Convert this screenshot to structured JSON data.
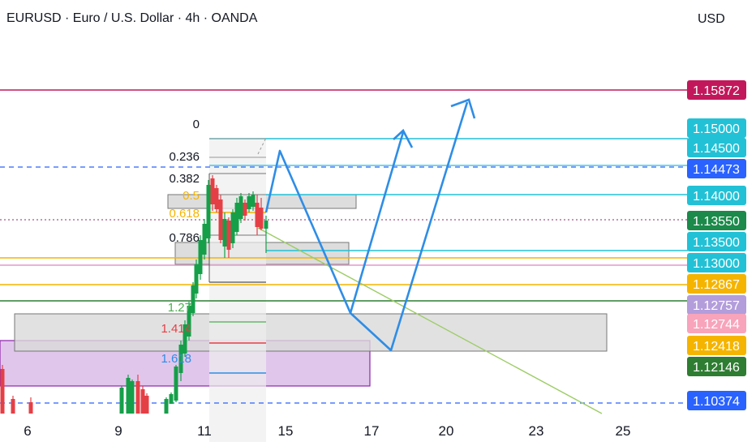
{
  "header": {
    "title": "EURUSD · Euro / U.S. Dollar · 4h · OANDA",
    "currency": "USD"
  },
  "colors": {
    "bull": "#26a69a",
    "bull_candle": "#159f49",
    "bear": "#e53f46",
    "arrow": "#2e8de6",
    "cyan": "#22c1d6",
    "crimson": "#c2185b",
    "amber": "#f5b400",
    "green_line": "#2e7d32",
    "pink_line": "#e39ac9",
    "zone_gray": "#d9d9d9",
    "zone_purple": "#e1c6ec"
  },
  "chart_data": {
    "type": "candlestick",
    "title": "EURUSD · Euro / U.S. Dollar · 4h · OANDA",
    "currency": "USD",
    "x_ticks": [
      "6",
      "9",
      "11",
      "15",
      "17",
      "20",
      "23",
      "25"
    ],
    "price_labels": [
      {
        "value": "1.15872",
        "bg": "#c2185b",
        "color": "#ffffff"
      },
      {
        "value": "1.15000",
        "bg": "#22c1d6",
        "color": "#131722"
      },
      {
        "value": "1.14500",
        "bg": "#22c1d6",
        "color": "#131722"
      },
      {
        "value": "1.14473",
        "bg": "#2962ff",
        "color": "#ffffff"
      },
      {
        "value": "1.14000",
        "bg": "#22c1d6",
        "color": "#131722"
      },
      {
        "value": "1.13550",
        "bg": "#1b8a4a",
        "color": "#ffffff"
      },
      {
        "value": "1.13500",
        "bg": "#22c1d6",
        "color": "#131722"
      },
      {
        "value": "1.13000",
        "bg": "#22c1d6",
        "color": "#131722"
      },
      {
        "value": "1.12867",
        "bg": "#f5b400",
        "color": "#131722"
      },
      {
        "value": "1.12757",
        "bg": "#b39ddb",
        "color": "#131722"
      },
      {
        "value": "1.12744",
        "bg": "#f8a4bb",
        "color": "#131722"
      },
      {
        "value": "1.12418",
        "bg": "#f5b400",
        "color": "#131722"
      },
      {
        "value": "1.12146",
        "bg": "#2e7d32",
        "color": "#ffffff"
      },
      {
        "value": "1.10374",
        "bg": "#2962ff",
        "color": "#ffffff"
      }
    ],
    "fib_levels": [
      {
        "label": "0",
        "color": "#131722"
      },
      {
        "label": "0.236",
        "color": "#131722"
      },
      {
        "label": "0.382",
        "color": "#131722"
      },
      {
        "label": "0.5",
        "color": "#f5b400"
      },
      {
        "label": "0.618",
        "color": "#f5b400"
      },
      {
        "label": "0.786",
        "color": "#131722"
      },
      {
        "label": "1.27",
        "color": "#4caf50"
      },
      {
        "label": "1.414",
        "color": "#e53f46"
      },
      {
        "label": "1.618",
        "color": "#2e8de6"
      }
    ],
    "last_price": "1.13550"
  }
}
